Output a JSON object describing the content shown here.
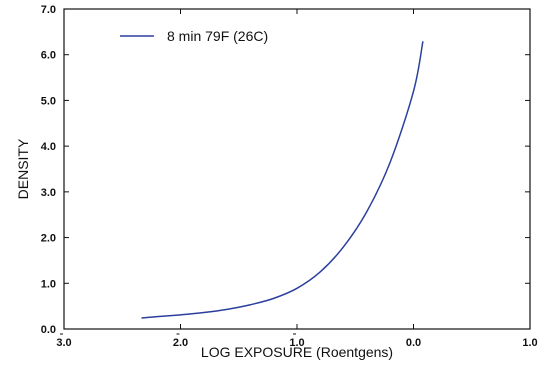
{
  "chart_data": {
    "type": "line",
    "xlabel": "LOG EXPOSURE (Roentgens)",
    "ylabel": "DENSITY",
    "xlim": [
      -3.0,
      1.0
    ],
    "ylim": [
      0.0,
      7.0
    ],
    "x_ticks": [
      {
        "value": -3.0,
        "label": "3.0",
        "bar": true
      },
      {
        "value": -2.0,
        "label": "2.0",
        "bar": true
      },
      {
        "value": -1.0,
        "label": "1.0",
        "bar": true
      },
      {
        "value": 0.0,
        "label": "0.0",
        "bar": false
      },
      {
        "value": 1.0,
        "label": "1.0",
        "bar": false
      }
    ],
    "y_ticks": [
      {
        "value": 0.0,
        "label": "0.0"
      },
      {
        "value": 1.0,
        "label": "1.0"
      },
      {
        "value": 2.0,
        "label": "2.0"
      },
      {
        "value": 3.0,
        "label": "3.0"
      },
      {
        "value": 4.0,
        "label": "4.0"
      },
      {
        "value": 5.0,
        "label": "5.0"
      },
      {
        "value": 6.0,
        "label": "6.0"
      },
      {
        "value": 7.0,
        "label": "7.0"
      }
    ],
    "grid": false,
    "legend_position": "top-left",
    "series": [
      {
        "name": "8 min 79F (26C)",
        "color": "#2b3f9e",
        "x": [
          -2.33,
          -2.2,
          -2.0,
          -1.8,
          -1.6,
          -1.4,
          -1.2,
          -1.0,
          -0.8,
          -0.6,
          -0.4,
          -0.2,
          0.0,
          0.08
        ],
        "y": [
          0.24,
          0.27,
          0.31,
          0.36,
          0.43,
          0.53,
          0.67,
          0.89,
          1.25,
          1.8,
          2.57,
          3.65,
          5.2,
          6.28
        ]
      }
    ]
  }
}
